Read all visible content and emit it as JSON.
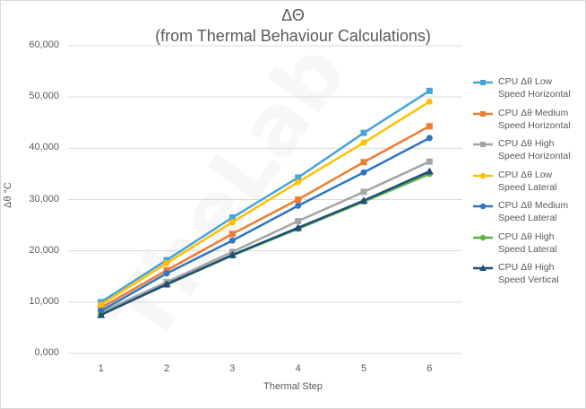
{
  "colors": {
    "grid": "#d9d9d9",
    "text": "#595959"
  },
  "watermark_text": "TheLab",
  "chart_data": {
    "type": "line",
    "title": "ΔΘ",
    "subtitle": "(from Thermal Behaviour Calculations)",
    "xlabel": "Thermal Step",
    "ylabel": "Δθ °C",
    "categories": [
      "1",
      "2",
      "3",
      "4",
      "5",
      "6"
    ],
    "ylim": [
      0,
      60000
    ],
    "yticks": [
      "0,000",
      "10,000",
      "20,000",
      "30,000",
      "40,000",
      "50,000",
      "60,000"
    ],
    "ytick_values": [
      0,
      10000,
      20000,
      30000,
      40000,
      50000,
      60000
    ],
    "grid": true,
    "legend_position": "right",
    "series": [
      {
        "name": "CPU Δθ Low Speed Horizontal",
        "line1": "CPU Δθ Low",
        "line2": "Speed Horizontal",
        "color": "#46a4db",
        "marker": "square",
        "values": [
          10000,
          18200,
          26500,
          34300,
          43000,
          51200
        ]
      },
      {
        "name": "CPU Δθ Medium Speed Horizontal",
        "line1": "CPU Δθ Medium",
        "line2": "Speed Horizontal",
        "color": "#ed7d31",
        "marker": "square",
        "values": [
          8900,
          16200,
          23300,
          30000,
          37300,
          44300
        ]
      },
      {
        "name": "CPU Δθ High Speed Horizontal",
        "line1": "CPU Δθ High",
        "line2": "Speed Horizontal",
        "color": "#a5a5a5",
        "marker": "square",
        "values": [
          8000,
          13900,
          19800,
          25800,
          31500,
          37400
        ]
      },
      {
        "name": "CPU Δθ Low Speed Lateral",
        "line1": "CPU Δθ Low",
        "line2": "Speed Lateral",
        "color": "#ffc000",
        "marker": "circle",
        "values": [
          9500,
          17600,
          25600,
          33400,
          41100,
          49100
        ]
      },
      {
        "name": "CPU Δθ Medium Speed Lateral",
        "line1": "CPU Δθ Medium",
        "line2": "Speed Lateral",
        "color": "#2f75c4",
        "marker": "circle",
        "values": [
          8300,
          15600,
          22000,
          28800,
          35300,
          42000
        ]
      },
      {
        "name": "CPU Δθ High Speed Lateral",
        "line1": "CPU Δθ High",
        "line2": "Speed Lateral",
        "color": "#5bb543",
        "marker": "circle",
        "values": [
          7600,
          13400,
          19100,
          24300,
          29600,
          35000
        ]
      },
      {
        "name": "CPU Δθ High Speed Vertical",
        "line1": "CPU Δθ High",
        "line2": "Speed Vertical",
        "color": "#1f4e79",
        "marker": "triangle",
        "values": [
          7500,
          13500,
          19200,
          24500,
          29800,
          35500
        ]
      }
    ]
  }
}
